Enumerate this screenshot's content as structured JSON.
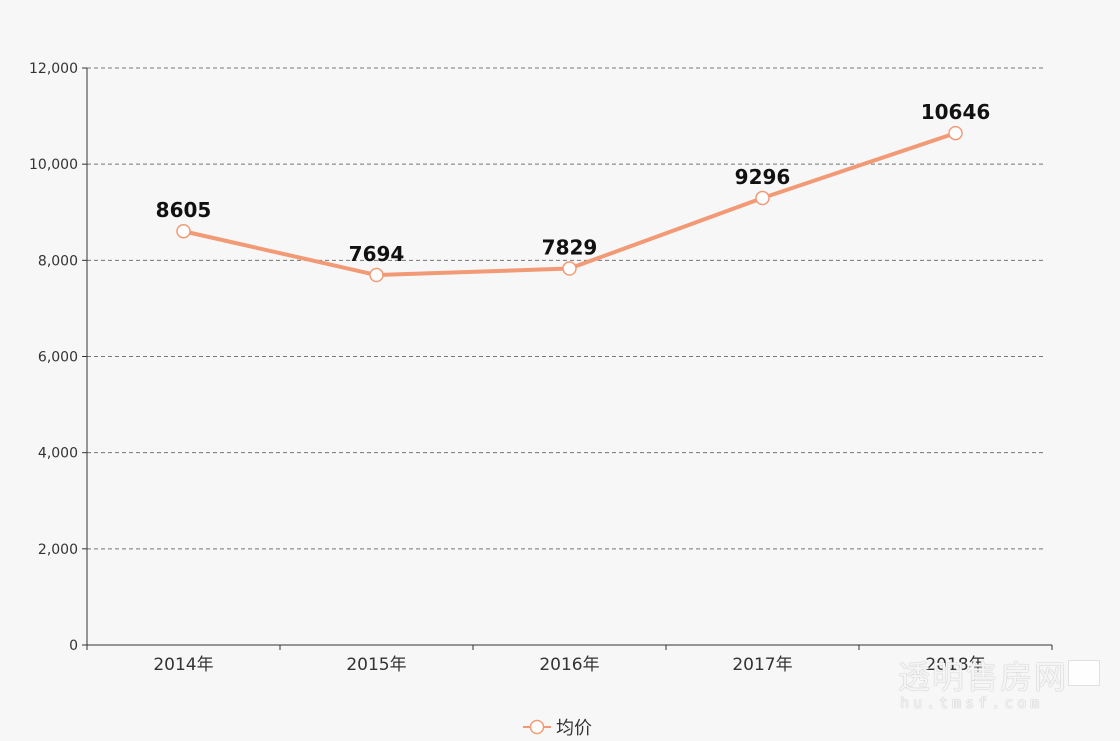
{
  "chart_data": {
    "type": "line",
    "categories": [
      "2014年",
      "2015年",
      "2016年",
      "2017年",
      "2018年"
    ],
    "series": [
      {
        "name": "均价",
        "values": [
          8605,
          7694,
          7829,
          9296,
          10646
        ],
        "color": "#f29a76"
      }
    ],
    "ylim": [
      0,
      12000
    ],
    "yticks": [
      0,
      2000,
      4000,
      6000,
      8000,
      10000,
      12000
    ],
    "ytick_labels": [
      "0",
      "2,000",
      "4,000",
      "6,000",
      "8,000",
      "10,000",
      "12,000"
    ],
    "grid": true,
    "legend": "bottom-center"
  },
  "legend": {
    "label": "均价",
    "icon": "circle-line-icon"
  },
  "watermark": {
    "main": "透明售房网",
    "sub": "hu.tmsf.com"
  }
}
